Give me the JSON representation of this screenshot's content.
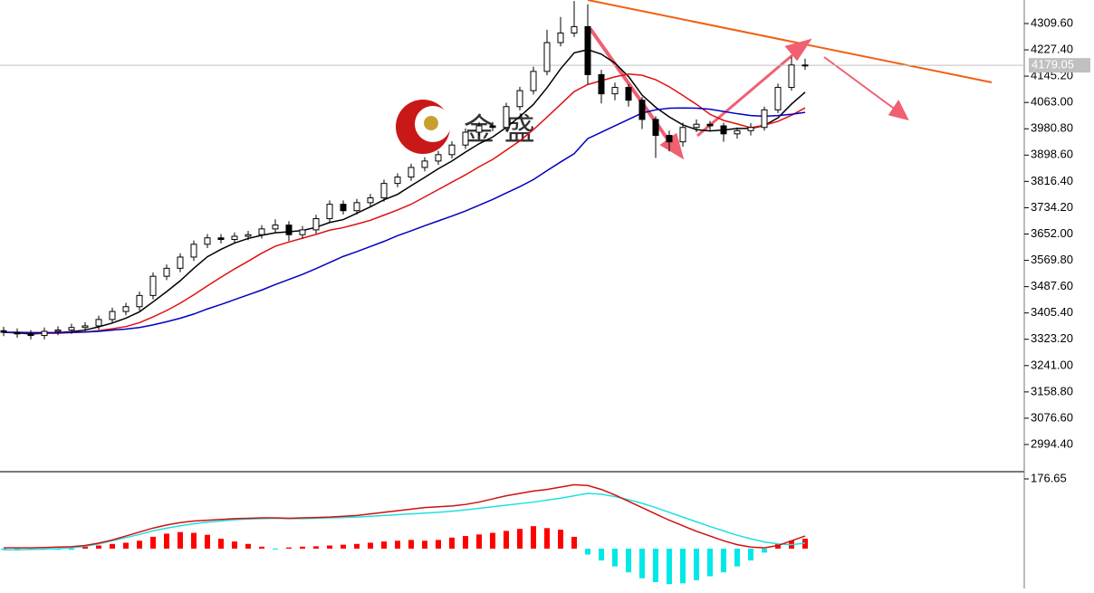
{
  "chart_data": {
    "type": "candlestick",
    "watermark": "金 盛",
    "up_color": "#ffffff",
    "down_color": "#000000",
    "open": [
      3350,
      3345,
      3340,
      3335,
      3348,
      3352,
      3360,
      3365,
      3385,
      3410,
      3425,
      3460,
      3520,
      3545,
      3580,
      3620,
      3640,
      3635,
      3645,
      3650,
      3668,
      3680,
      3650,
      3665,
      3700,
      3745,
      3725,
      3750,
      3765,
      3810,
      3830,
      3860,
      3880,
      3900,
      3930,
      3970,
      3990,
      3985,
      4050,
      4100,
      4160,
      4250,
      4280,
      4300,
      4150,
      4090,
      4110,
      4070,
      4010,
      3960,
      3940,
      3985,
      3995,
      3990,
      3965,
      3975,
      3985,
      4040,
      4110,
      4180
    ],
    "high": [
      3362,
      3357,
      3352,
      3360,
      3364,
      3372,
      3377,
      3397,
      3422,
      3437,
      3472,
      3532,
      3557,
      3592,
      3632,
      3652,
      3652,
      3657,
      3662,
      3680,
      3698,
      3692,
      3677,
      3712,
      3757,
      3757,
      3762,
      3777,
      3822,
      3842,
      3872,
      3892,
      3912,
      3942,
      3982,
      4002,
      4002,
      4062,
      4112,
      4175,
      4290,
      4330,
      4380,
      4370,
      4165,
      4125,
      4120,
      4080,
      4020,
      3975,
      4000,
      4010,
      4005,
      4000,
      3985,
      3998,
      4050,
      4122,
      4205,
      4200
    ],
    "low": [
      3333,
      3328,
      3323,
      3323,
      3336,
      3340,
      3348,
      3353,
      3373,
      3398,
      3413,
      3448,
      3508,
      3533,
      3568,
      3608,
      3623,
      3623,
      3633,
      3638,
      3656,
      3630,
      3638,
      3653,
      3688,
      3713,
      3713,
      3738,
      3753,
      3798,
      3818,
      3848,
      3868,
      3888,
      3918,
      3958,
      3973,
      3973,
      4038,
      4088,
      4148,
      4238,
      4268,
      4120,
      4060,
      4070,
      4050,
      3980,
      3890,
      3910,
      3925,
      3970,
      3975,
      3940,
      3950,
      3960,
      3975,
      4030,
      4100,
      4165
    ],
    "close": [
      3345,
      3340,
      3335,
      3348,
      3352,
      3360,
      3365,
      3385,
      3410,
      3425,
      3460,
      3520,
      3545,
      3580,
      3620,
      3640,
      3635,
      3645,
      3650,
      3668,
      3680,
      3650,
      3665,
      3700,
      3745,
      3725,
      3750,
      3765,
      3810,
      3830,
      3860,
      3880,
      3900,
      3930,
      3970,
      3990,
      3985,
      4050,
      4100,
      4160,
      4250,
      4280,
      4300,
      4150,
      4090,
      4110,
      4070,
      4010,
      3960,
      3940,
      3985,
      3995,
      3990,
      3965,
      3975,
      3985,
      4040,
      4110,
      4180,
      4179.05
    ],
    "ma": [
      {
        "color": "#000000",
        "values": [
          3345,
          3343,
          3340,
          3342,
          3344,
          3347,
          3352,
          3362,
          3374,
          3389,
          3409,
          3440,
          3472,
          3506,
          3545,
          3581,
          3604,
          3624,
          3638,
          3648,
          3656,
          3659,
          3663,
          3673,
          3688,
          3697,
          3717,
          3737,
          3759,
          3776,
          3803,
          3829,
          3856,
          3880,
          3908,
          3934,
          3955,
          3985,
          4019,
          4057,
          4109,
          4168,
          4218,
          4228,
          4214,
          4186,
          4144,
          4086,
          4048,
          4018,
          3993,
          3978,
          3974,
          3977,
          3982,
          3982,
          3991,
          4015,
          4058,
          4095
        ]
      },
      {
        "color": "#e01010",
        "values": [
          3345,
          3344,
          3343,
          3342,
          3342,
          3344,
          3346,
          3350,
          3356,
          3363,
          3375,
          3393,
          3413,
          3436,
          3462,
          3490,
          3517,
          3543,
          3567,
          3592,
          3614,
          3627,
          3639,
          3651,
          3664,
          3672,
          3683,
          3695,
          3711,
          3727,
          3745,
          3768,
          3791,
          3814,
          3837,
          3862,
          3885,
          3914,
          3943,
          3978,
          4017,
          4057,
          4097,
          4119,
          4131,
          4143,
          4152,
          4148,
          4134,
          4112,
          4085,
          4057,
          4026,
          4007,
          3996,
          3984,
          3992,
          4004,
          4023,
          4046
        ]
      },
      {
        "color": "#0000c0",
        "values": [
          3345,
          3345,
          3344,
          3344,
          3344,
          3345,
          3346,
          3348,
          3352,
          3355,
          3360,
          3368,
          3378,
          3389,
          3402,
          3418,
          3432,
          3447,
          3462,
          3477,
          3494,
          3510,
          3526,
          3544,
          3563,
          3582,
          3597,
          3613,
          3629,
          3647,
          3662,
          3678,
          3693,
          3708,
          3724,
          3742,
          3760,
          3780,
          3800,
          3822,
          3850,
          3877,
          3903,
          3950,
          3970,
          3990,
          4010,
          4030,
          4040,
          4045,
          4046,
          4045,
          4042,
          4035,
          4028,
          4022,
          4020,
          4022,
          4026,
          4032
        ]
      }
    ],
    "ylim": [
      2912.4,
      4383.1
    ],
    "yticks": [
      {
        "value": 4309.6,
        "label": "4309.60"
      },
      {
        "value": 4227.4,
        "label": "4227.40"
      },
      {
        "value": 4145.2,
        "label": "4145.20"
      },
      {
        "value": 4063,
        "label": "4063.00"
      },
      {
        "value": 3980.8,
        "label": "3980.80"
      },
      {
        "value": 3898.6,
        "label": "3898.60"
      },
      {
        "value": 3816.4,
        "label": "3816.40"
      },
      {
        "value": 3734.2,
        "label": "3734.20"
      },
      {
        "value": 3652,
        "label": "3652.00"
      },
      {
        "value": 3569.8,
        "label": "3569.80"
      },
      {
        "value": 3487.6,
        "label": "3487.60"
      },
      {
        "value": 3405.4,
        "label": "3405.40"
      },
      {
        "value": 3323.2,
        "label": "3323.20"
      },
      {
        "value": 3241,
        "label": "3241.00"
      },
      {
        "value": 3158.8,
        "label": "3158.80"
      },
      {
        "value": 3076.6,
        "label": "3076.60"
      },
      {
        "value": 2994.4,
        "label": "2994.40"
      }
    ],
    "macd": {
      "ylim": [
        -100.9,
        192.7
      ],
      "yticks": [
        176.65
      ],
      "up_color": "#ff0000",
      "down_color": "#00e8e8",
      "histogram": [
        -3,
        -3,
        -3,
        -3,
        -3,
        -3,
        5,
        8,
        12,
        15,
        20,
        30,
        38,
        42,
        40,
        35,
        25,
        18,
        12,
        5,
        -2,
        3,
        5,
        6,
        8,
        10,
        12,
        15,
        18,
        20,
        22,
        20,
        22,
        28,
        32,
        36,
        40,
        45,
        50,
        57,
        52,
        48,
        30,
        -15,
        -30,
        -45,
        -60,
        -75,
        -85,
        -90,
        -88,
        -80,
        -70,
        -60,
        -45,
        -30,
        -10,
        12,
        20,
        25
      ],
      "macd_line": {
        "color": "#20e0e0",
        "values": [
          -3,
          -3,
          -2,
          -1,
          0,
          2,
          6,
          12,
          20,
          28,
          36,
          45,
          52,
          58,
          63,
          67,
          70,
          73,
          75,
          76,
          77,
          76,
          76,
          77,
          78,
          79,
          80,
          82,
          84,
          86,
          88,
          90,
          92,
          95,
          98,
          102,
          106,
          110,
          114,
          118,
          123,
          128,
          134,
          140,
          138,
          132,
          124,
          115,
          104,
          92,
          80,
          68,
          56,
          45,
          34,
          25,
          17,
          12,
          10,
          14
        ]
      },
      "signal_line": {
        "color": "#d01010",
        "values": [
          2,
          2,
          2,
          3,
          4,
          5,
          8,
          14,
          22,
          32,
          42,
          52,
          60,
          66,
          70,
          72,
          74,
          76,
          77,
          78,
          78,
          77,
          78,
          79,
          80,
          82,
          84,
          88,
          92,
          96,
          100,
          104,
          106,
          108,
          112,
          118,
          126,
          134,
          140,
          146,
          150,
          156,
          162,
          160,
          150,
          136,
          120,
          104,
          88,
          72,
          58,
          44,
          32,
          20,
          10,
          4,
          2,
          8,
          20,
          32
        ]
      }
    }
  }
}
